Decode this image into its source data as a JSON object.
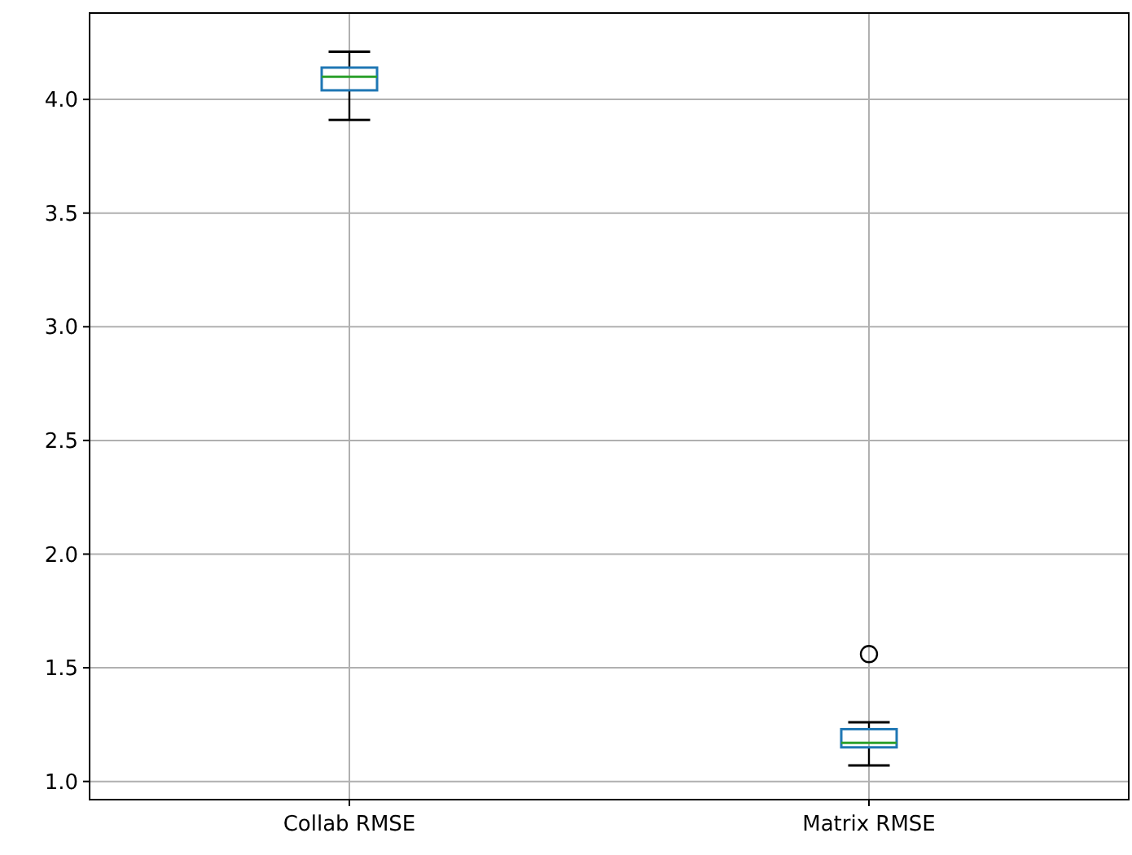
{
  "chart_data": {
    "type": "box",
    "categories": [
      "Collab RMSE",
      "Matrix RMSE"
    ],
    "boxes": [
      {
        "low": 3.91,
        "q1": 4.04,
        "median": 4.1,
        "q3": 4.14,
        "high": 4.21
      },
      {
        "low": 1.07,
        "q1": 1.15,
        "median": 1.17,
        "q3": 1.23,
        "high": 1.26,
        "outliers": [
          1.56
        ]
      }
    ],
    "color": "#1f77b4",
    "ylim": [
      0.92,
      4.38
    ],
    "yticks": [
      {
        "value": 1,
        "label": "1.0"
      },
      {
        "value": 1.5,
        "label": "1.5"
      },
      {
        "value": 2,
        "label": "2.0"
      },
      {
        "value": 2.5,
        "label": "2.5"
      },
      {
        "value": 3,
        "label": "3.0"
      },
      {
        "value": 3.5,
        "label": "3.5"
      },
      {
        "value": 4,
        "label": "4.0"
      }
    ],
    "grid": true
  }
}
